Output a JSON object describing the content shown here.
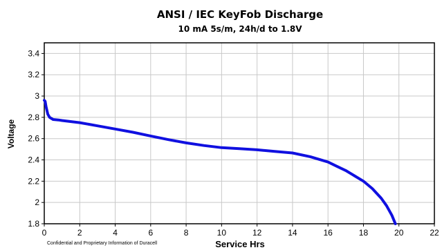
{
  "chart_data": {
    "type": "line",
    "title": "ANSI / IEC KeyFob Discharge",
    "subtitle": "10 mA 5s/m, 24h/d to 1.8V",
    "xlabel": "Service Hrs",
    "ylabel": "Voltage",
    "xlim": [
      0,
      22
    ],
    "ylim": [
      1.8,
      3.5
    ],
    "x_ticks": [
      0,
      2,
      4,
      6,
      8,
      10,
      12,
      14,
      16,
      18,
      20,
      22
    ],
    "y_ticks": [
      1.8,
      2,
      2.2,
      2.4,
      2.6,
      2.8,
      3,
      3.2,
      3.4
    ],
    "x_tick_labels": [
      "0",
      "2",
      "4",
      "6",
      "8",
      "10",
      "12",
      "14",
      "16",
      "18",
      "20",
      "22"
    ],
    "y_tick_labels": [
      "1.8",
      "2",
      "2.2",
      "2.4",
      "2.6",
      "2.8",
      "3",
      "3.2",
      "3.4"
    ],
    "grid": true,
    "series": [
      {
        "color": "#1010e0",
        "x": [
          0,
          0.05,
          0.1,
          0.2,
          0.3,
          0.5,
          0.8,
          1,
          2,
          3,
          4,
          5,
          6,
          7,
          8,
          9,
          10,
          11,
          12,
          13,
          14,
          15,
          16,
          16.5,
          17,
          17.5,
          18,
          18.5,
          19,
          19.3,
          19.6,
          19.8
        ],
        "y": [
          2.96,
          2.95,
          2.9,
          2.83,
          2.8,
          2.78,
          2.775,
          2.77,
          2.75,
          2.72,
          2.69,
          2.66,
          2.625,
          2.59,
          2.56,
          2.535,
          2.515,
          2.505,
          2.495,
          2.48,
          2.465,
          2.43,
          2.38,
          2.34,
          2.3,
          2.25,
          2.2,
          2.13,
          2.04,
          1.97,
          1.88,
          1.8
        ]
      }
    ]
  },
  "footer": {
    "note": "Confidential and Proprietary Information of Duracell"
  }
}
